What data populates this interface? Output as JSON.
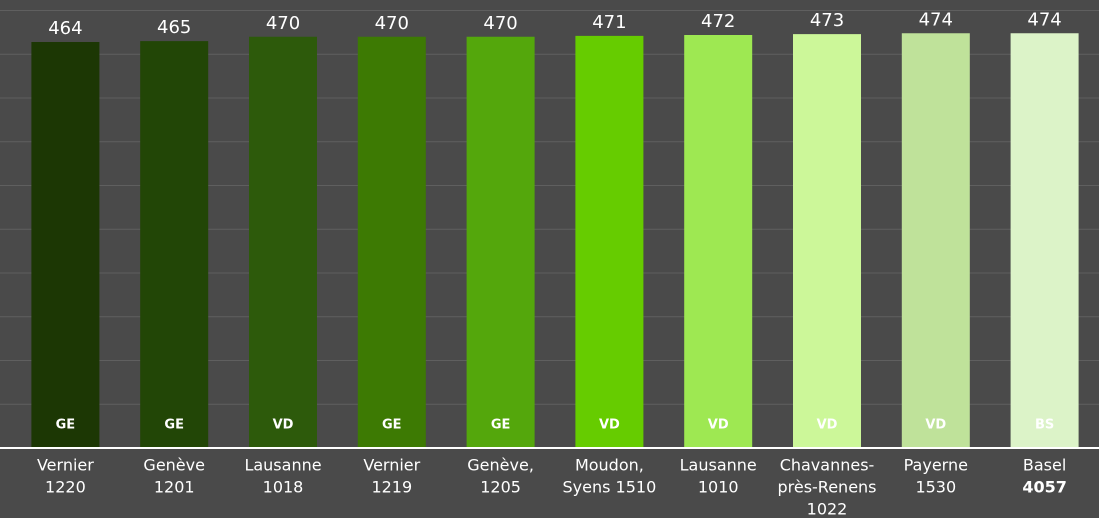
{
  "chart_data": {
    "type": "bar",
    "categories": [
      [
        "Vernier",
        "1220"
      ],
      [
        "Genève",
        "1201"
      ],
      [
        "Lausanne",
        "1018"
      ],
      [
        "Vernier",
        "1219"
      ],
      [
        "Genève,",
        "1205"
      ],
      [
        "Moudon,",
        "Syens 1510"
      ],
      [
        "Lausanne",
        "1010"
      ],
      [
        "Chavannes-",
        "près-Renens",
        "1022"
      ],
      [
        "Payerne",
        "1530"
      ],
      [
        "Basel",
        "4057"
      ]
    ],
    "values": [
      464,
      465,
      470,
      470,
      470,
      471,
      472,
      473,
      474,
      474
    ],
    "bar_labels": [
      "GE",
      "GE",
      "VD",
      "GE",
      "GE",
      "VD",
      "VD",
      "VD",
      "VD",
      "BS"
    ],
    "colors": [
      "#1c3704",
      "#224606",
      "#2d5a0b",
      "#3d7a03",
      "#54a70c",
      "#66cc00",
      "#9ee852",
      "#ccf799",
      "#bfe29a",
      "#dcf3c8"
    ],
    "ylim": [
      0,
      512
    ],
    "yticks": [
      0,
      50,
      100,
      150,
      200,
      250,
      300,
      350,
      400,
      450,
      500
    ],
    "grid": true
  }
}
